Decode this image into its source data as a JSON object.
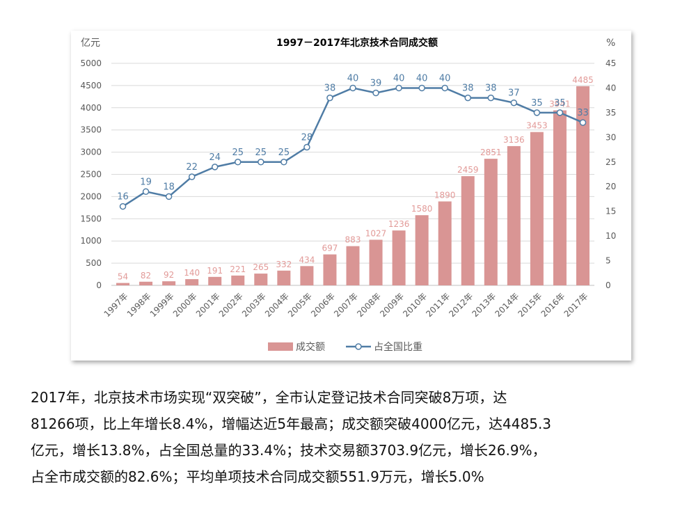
{
  "chart_data": {
    "type": "bar",
    "title": "1997－2017年北京技术合同成交额",
    "left_unit": "亿元",
    "right_unit": "%",
    "categories": [
      "1997年",
      "1998年",
      "1999年",
      "2000年",
      "2001年",
      "2002年",
      "2003年",
      "2004年",
      "2005年",
      "2006年",
      "2007年",
      "2008年",
      "2009年",
      "2010年",
      "2011年",
      "2012年",
      "2013年",
      "2014年",
      "2015年",
      "2016年",
      "2017年"
    ],
    "series": [
      {
        "name": "成交额",
        "type": "bar",
        "axis": "left",
        "color": "#d99594",
        "label_color": "#e29a98",
        "values": [
          54,
          82,
          92,
          140,
          191,
          221,
          265,
          332,
          434,
          697,
          883,
          1027,
          1236,
          1580,
          1890,
          2459,
          2851,
          3136,
          3453,
          3941,
          4485
        ]
      },
      {
        "name": "占全国比重",
        "type": "line",
        "axis": "right",
        "color": "#4f7ca5",
        "label_color": "#4f7ca5",
        "values": [
          16,
          19,
          18,
          22,
          24,
          25,
          25,
          25,
          28,
          38,
          40,
          39,
          40,
          40,
          40,
          38,
          38,
          37,
          35,
          35,
          33
        ]
      }
    ],
    "y_left": {
      "min": 0,
      "max": 5000,
      "ticks": [
        "0",
        "500",
        "1000",
        "1500",
        "2000",
        "2500",
        "3000",
        "3500",
        "4000",
        "4500",
        "5000"
      ]
    },
    "y_right": {
      "min": 0,
      "max": 45,
      "ticks": [
        "0",
        "5",
        "10",
        "15",
        "20",
        "25",
        "30",
        "35",
        "40",
        "45"
      ]
    },
    "grid": true,
    "legend_position": "bottom"
  },
  "caption": {
    "lines": [
      "2017年，北京技术市场实现“双突破”，全市认定登记技术合同突破8万项，达",
      "81266项，比上年增长8.4%，增幅达近5年最高；成交额突破4000亿元，达4485.3",
      "亿元，增长13.8%，占全国总量的33.4%；技术交易额3703.9亿元，增长26.9%，",
      "占全市成交额的82.6%；平均单项技术合同成交额551.9万元，增长5.0%"
    ]
  }
}
